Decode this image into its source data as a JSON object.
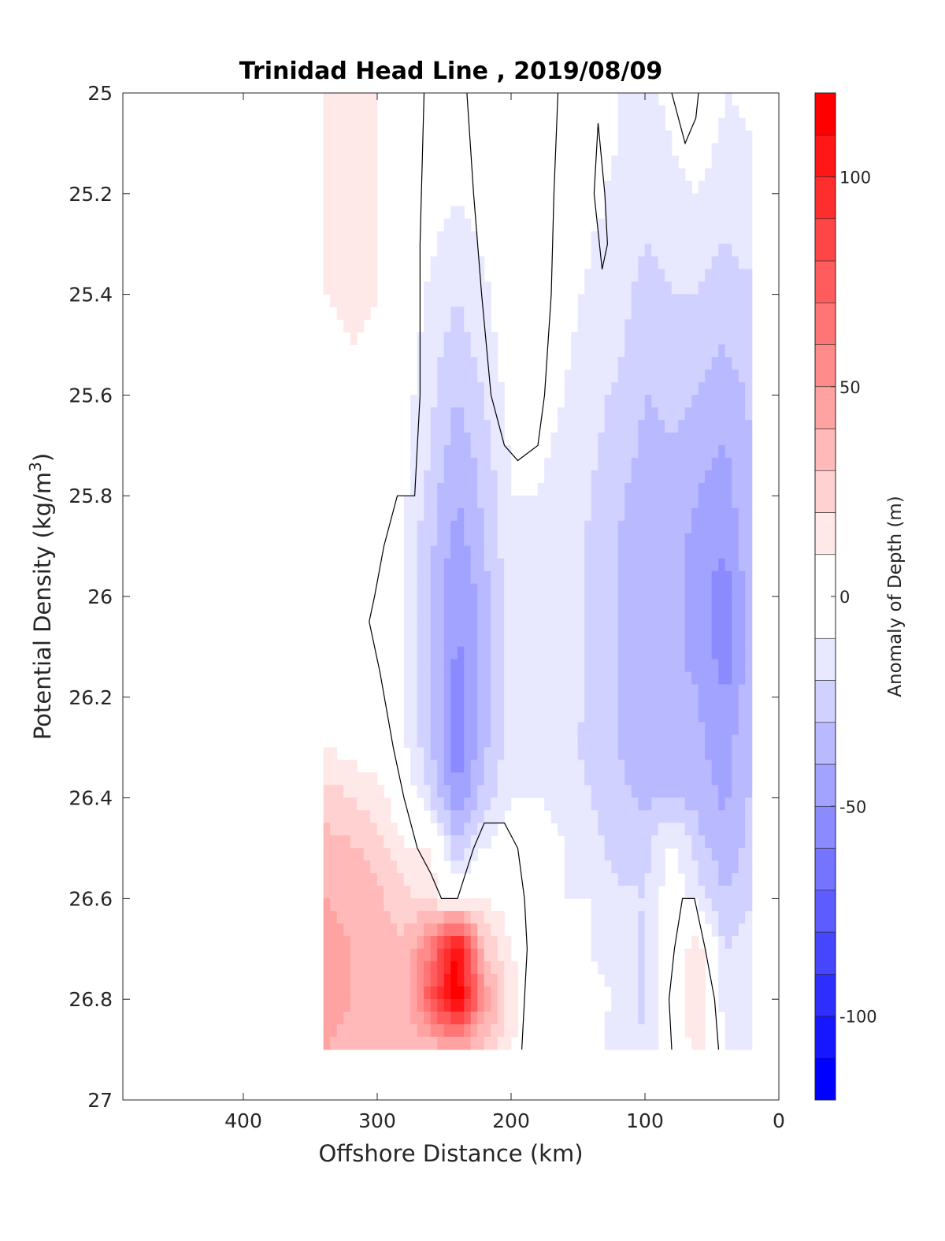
{
  "chart_data": {
    "type": "heatmap",
    "title": "Trinidad Head Line , 2019/08/09",
    "xlabel": "Offshore Distance (km)",
    "ylabel_parts": [
      "Potential Density (kg/m",
      "3",
      ")"
    ],
    "colorbar_label": "Anomaly of Depth (m)",
    "xlim": [
      490,
      0
    ],
    "ylim": [
      25,
      27
    ],
    "x_reversed": true,
    "y_reversed": true,
    "x_ticks": [
      400,
      300,
      200,
      100,
      0
    ],
    "y_ticks": [
      25,
      25.2,
      25.4,
      25.6,
      25.8,
      26,
      26.2,
      26.4,
      26.6,
      26.8,
      27
    ],
    "x_tick_labels": [
      "400",
      "300",
      "200",
      "100",
      "0"
    ],
    "y_tick_labels": [
      "25",
      "25.2",
      "25.4",
      "25.6",
      "25.8",
      "26",
      "26.2",
      "26.4",
      "26.6",
      "26.8",
      "27"
    ],
    "colorbar": {
      "range": [
        -120,
        120
      ],
      "levels": [
        -120,
        -110,
        -100,
        -90,
        -80,
        -70,
        -60,
        -50,
        -40,
        -30,
        -20,
        -10,
        10,
        20,
        30,
        40,
        50,
        60,
        70,
        80,
        90,
        100,
        110,
        120
      ],
      "ticks": [
        -100,
        -50,
        0,
        50,
        100
      ],
      "tick_labels": [
        "-100",
        "-50",
        "0",
        "50",
        "100"
      ],
      "neg_color": "#0000ff",
      "pos_color": "#ff0000",
      "zero_color": "#ffffff"
    },
    "stations_x": [
      340,
      320,
      300,
      280,
      260,
      240,
      220,
      200,
      180,
      160,
      140,
      120,
      100,
      80,
      60,
      40,
      20
    ],
    "density_levels": [
      25.0,
      25.1,
      25.2,
      25.3,
      25.4,
      25.5,
      25.6,
      25.7,
      25.8,
      25.9,
      26.0,
      26.1,
      26.2,
      26.3,
      26.4,
      26.5,
      26.6,
      26.7,
      26.8,
      26.9
    ],
    "anomaly_grid": [
      [
        15,
        12,
        10,
        3,
        -3,
        -5,
        0,
        5,
        10,
        0,
        -5,
        -10,
        -12,
        -8,
        0,
        -10,
        -8
      ],
      [
        15,
        12,
        10,
        3,
        -3,
        -8,
        0,
        5,
        10,
        0,
        -6,
        -10,
        -14,
        -10,
        -6,
        -12,
        -10
      ],
      [
        15,
        12,
        10,
        3,
        -5,
        -10,
        -3,
        5,
        5,
        0,
        -8,
        -12,
        -16,
        -12,
        -10,
        -14,
        -12
      ],
      [
        12,
        12,
        10,
        0,
        -8,
        -15,
        -8,
        3,
        3,
        -3,
        -10,
        -12,
        -20,
        -16,
        -14,
        -20,
        -16
      ],
      [
        10,
        12,
        10,
        0,
        -12,
        -20,
        -12,
        0,
        2,
        -6,
        -12,
        -15,
        -25,
        -20,
        -20,
        -26,
        -22
      ],
      [
        5,
        10,
        8,
        -3,
        -15,
        -25,
        -15,
        -3,
        0,
        -8,
        -14,
        -18,
        -28,
        -25,
        -25,
        -30,
        -25
      ],
      [
        0,
        5,
        5,
        -5,
        -18,
        -30,
        -20,
        -6,
        -3,
        -10,
        -16,
        -22,
        -30,
        -28,
        -30,
        -35,
        -28
      ],
      [
        0,
        2,
        0,
        -6,
        -20,
        -35,
        -25,
        -8,
        -8,
        -12,
        -18,
        -25,
        -32,
        -30,
        -35,
        -40,
        -30
      ],
      [
        0,
        0,
        0,
        -8,
        -25,
        -40,
        -28,
        -10,
        -10,
        -14,
        -20,
        -28,
        -35,
        -32,
        -40,
        -45,
        -30
      ],
      [
        0,
        0,
        0,
        -10,
        -28,
        -45,
        -30,
        -12,
        -12,
        -15,
        -22,
        -30,
        -37,
        -35,
        -45,
        -50,
        -32
      ],
      [
        0,
        0,
        -5,
        -10,
        -30,
        -50,
        -35,
        -15,
        -14,
        -15,
        -22,
        -30,
        -38,
        -37,
        -45,
        -55,
        -34
      ],
      [
        0,
        0,
        -5,
        -10,
        -30,
        -52,
        -35,
        -15,
        -15,
        -15,
        -22,
        -30,
        -38,
        -38,
        -42,
        -58,
        -34
      ],
      [
        5,
        0,
        -3,
        -10,
        -30,
        -55,
        -35,
        -15,
        -15,
        -15,
        -22,
        -30,
        -38,
        -38,
        -40,
        -50,
        -32
      ],
      [
        10,
        5,
        5,
        -8,
        -28,
        -58,
        -32,
        -15,
        -15,
        -18,
        -22,
        -30,
        -35,
        -35,
        -38,
        -45,
        -30
      ],
      [
        25,
        20,
        15,
        0,
        -20,
        -50,
        -25,
        -10,
        -10,
        -15,
        -20,
        -28,
        -32,
        -30,
        -35,
        -42,
        -28
      ],
      [
        35,
        32,
        25,
        10,
        10,
        -30,
        -10,
        0,
        0,
        -10,
        -15,
        -25,
        -25,
        -5,
        -25,
        -38,
        -25
      ],
      [
        40,
        38,
        32,
        25,
        15,
        5,
        10,
        5,
        0,
        -10,
        -10,
        -18,
        -20,
        -2,
        -15,
        -30,
        -20
      ],
      [
        45,
        40,
        35,
        30,
        60,
        115,
        30,
        10,
        0,
        -8,
        -10,
        -15,
        -22,
        5,
        15,
        -20,
        -15
      ],
      [
        45,
        40,
        38,
        30,
        80,
        120,
        50,
        15,
        0,
        -5,
        -5,
        -12,
        -22,
        5,
        15,
        -15,
        -10
      ],
      [
        40,
        38,
        36,
        30,
        30,
        40,
        25,
        10,
        0,
        -2,
        -5,
        -15,
        -20,
        0,
        15,
        -10,
        -10
      ]
    ],
    "zero_contour_lines": [
      [
        [
          265,
          25.0
        ],
        [
          268,
          25.3
        ],
        [
          268,
          25.6
        ],
        [
          272,
          25.8
        ],
        [
          285,
          25.8
        ],
        [
          295,
          25.9
        ],
        [
          302,
          26.0
        ],
        [
          306,
          26.05
        ],
        [
          298,
          26.15
        ],
        [
          288,
          26.3
        ],
        [
          280,
          26.4
        ],
        [
          270,
          26.5
        ],
        [
          260,
          26.55
        ],
        [
          252,
          26.6
        ],
        [
          240,
          26.6
        ],
        [
          228,
          26.5
        ],
        [
          220,
          26.45
        ],
        [
          205,
          26.45
        ],
        [
          195,
          26.5
        ],
        [
          190,
          26.6
        ],
        [
          188,
          26.7
        ],
        [
          190,
          26.8
        ],
        [
          192,
          26.9
        ]
      ],
      [
        [
          233,
          25.0
        ],
        [
          228,
          25.2
        ],
        [
          222,
          25.4
        ],
        [
          215,
          25.6
        ],
        [
          205,
          25.7
        ],
        [
          195,
          25.73
        ],
        [
          180,
          25.7
        ],
        [
          175,
          25.6
        ],
        [
          170,
          25.4
        ],
        [
          168,
          25.2
        ],
        [
          165,
          25.0
        ]
      ],
      [
        [
          135,
          25.06
        ],
        [
          130,
          25.2
        ],
        [
          128,
          25.3
        ],
        [
          132,
          25.35
        ],
        [
          138,
          25.2
        ],
        [
          135,
          25.06
        ]
      ],
      [
        [
          80,
          25.0
        ],
        [
          75,
          25.05
        ],
        [
          70,
          25.1
        ],
        [
          62,
          25.05
        ],
        [
          60,
          25.0
        ]
      ],
      [
        [
          80,
          26.9
        ],
        [
          82,
          26.8
        ],
        [
          78,
          26.7
        ],
        [
          72,
          26.6
        ],
        [
          63,
          26.6
        ],
        [
          55,
          26.7
        ],
        [
          48,
          26.8
        ],
        [
          45,
          26.9
        ]
      ]
    ]
  }
}
